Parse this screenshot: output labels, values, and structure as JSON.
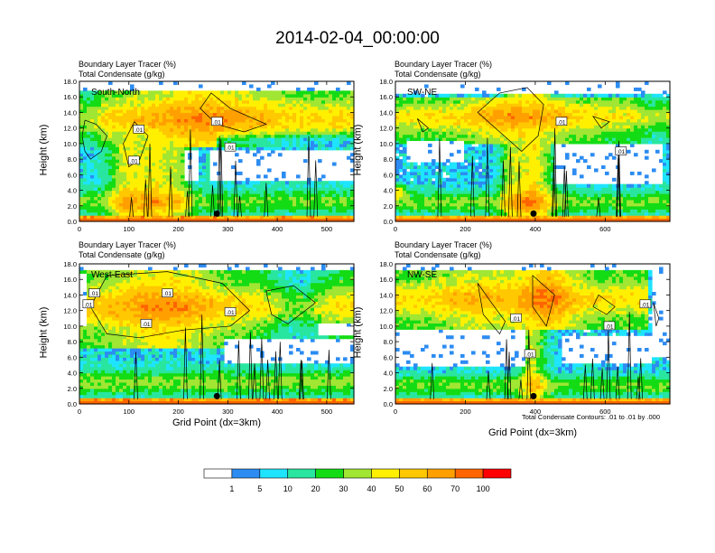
{
  "title": "2014-02-04_00:00:00",
  "colors": {
    "levels": [
      "#ffffff",
      "#2c8cf2",
      "#1ee4ff",
      "#28e6a0",
      "#14dc14",
      "#a0e632",
      "#fff000",
      "#ffc800",
      "#ffa000",
      "#ff6400",
      "#ff0000"
    ],
    "contour": "#000000",
    "marker": "#000000"
  },
  "chart_data": [
    {
      "type": "heatmap",
      "panel_label": "South-North",
      "header_line1": "Boundary Layer Tracer    (%)",
      "header_line2": "Total Condensate    (g/kg)",
      "ylabel": "Height (km)",
      "xlabel": "",
      "xlim": [
        0,
        555
      ],
      "ylim": [
        0,
        18
      ],
      "xticks": [
        0,
        100,
        200,
        300,
        400,
        500
      ],
      "yticks": [
        "0.0",
        "2.0",
        "4.0",
        "6.0",
        "8.0",
        "10.0",
        "12.0",
        "14.0",
        "16.0",
        "18.0"
      ],
      "marker": {
        "x": 278,
        "y": 1.0
      },
      "contour_labels": [
        {
          "text": ".01",
          "x": 120,
          "y": 11.8
        },
        {
          "text": ".01",
          "x": 110,
          "y": 7.8
        },
        {
          "text": ".01",
          "x": 278,
          "y": 12.8
        },
        {
          "text": ".01",
          "x": 305,
          "y": 9.5
        }
      ]
    },
    {
      "type": "heatmap",
      "panel_label": "SW-NE",
      "header_line1": "Boundary Layer Tracer    (%)",
      "header_line2": "Total Condensate    (g/kg)",
      "ylabel": "Height (km)",
      "xlabel": "",
      "xlim": [
        0,
        785
      ],
      "ylim": [
        0,
        18
      ],
      "xticks": [
        0,
        200,
        400,
        600
      ],
      "yticks": [
        "0.0",
        "2.0",
        "4.0",
        "6.0",
        "8.0",
        "10.0",
        "12.0",
        "14.0",
        "16.0",
        "18.0"
      ],
      "marker": {
        "x": 395,
        "y": 1.0
      },
      "contour_labels": [
        {
          "text": ".01",
          "x": 475,
          "y": 12.8
        },
        {
          "text": ".01",
          "x": 645,
          "y": 9.0
        }
      ]
    },
    {
      "type": "heatmap",
      "panel_label": "West-East",
      "header_line1": "Boundary Layer Tracer    (%)",
      "header_line2": "Total Condensate    (g/kg)",
      "ylabel": "Height (km)",
      "xlabel": "Grid Point (dx=3km)",
      "xlim": [
        0,
        555
      ],
      "ylim": [
        0,
        18
      ],
      "xticks": [
        0,
        100,
        200,
        300,
        400,
        500
      ],
      "yticks": [
        "0.0",
        "2.0",
        "4.0",
        "6.0",
        "8.0",
        "10.0",
        "12.0",
        "14.0",
        "16.0",
        "18.0"
      ],
      "marker": {
        "x": 278,
        "y": 1.0
      },
      "contour_labels": [
        {
          "text": ".01",
          "x": 30,
          "y": 14.2
        },
        {
          "text": ".01",
          "x": 18,
          "y": 12.8
        },
        {
          "text": ".01",
          "x": 135,
          "y": 10.3
        },
        {
          "text": ".01",
          "x": 178,
          "y": 14.2
        },
        {
          "text": ".01",
          "x": 305,
          "y": 11.8
        }
      ]
    },
    {
      "type": "heatmap",
      "panel_label": "NW-SE",
      "header_line1": "Boundary Layer Tracer    (%)",
      "header_line2": "Total Condensate    (g/kg)",
      "ylabel": "Height (km)",
      "xlabel": "Grid Point (dx=3km)",
      "footnote": "Total Condensate Contours: .01 to .01 by .000",
      "xlim": [
        0,
        785
      ],
      "ylim": [
        0,
        18
      ],
      "xticks": [
        0,
        200,
        400,
        600
      ],
      "yticks": [
        "0.0",
        "2.0",
        "4.0",
        "6.0",
        "8.0",
        "10.0",
        "12.0",
        "14.0",
        "16.0",
        "18.0"
      ],
      "marker": {
        "x": 395,
        "y": 1.0
      },
      "contour_labels": [
        {
          "text": ".01",
          "x": 345,
          "y": 11.0
        },
        {
          "text": ".01",
          "x": 612,
          "y": 10.0
        },
        {
          "text": ".01",
          "x": 715,
          "y": 12.8
        },
        {
          "text": ".01",
          "x": 385,
          "y": 6.4
        }
      ]
    }
  ],
  "colorbar": {
    "labels": [
      "1",
      "5",
      "10",
      "20",
      "30",
      "40",
      "50",
      "60",
      "70",
      "100"
    ]
  }
}
